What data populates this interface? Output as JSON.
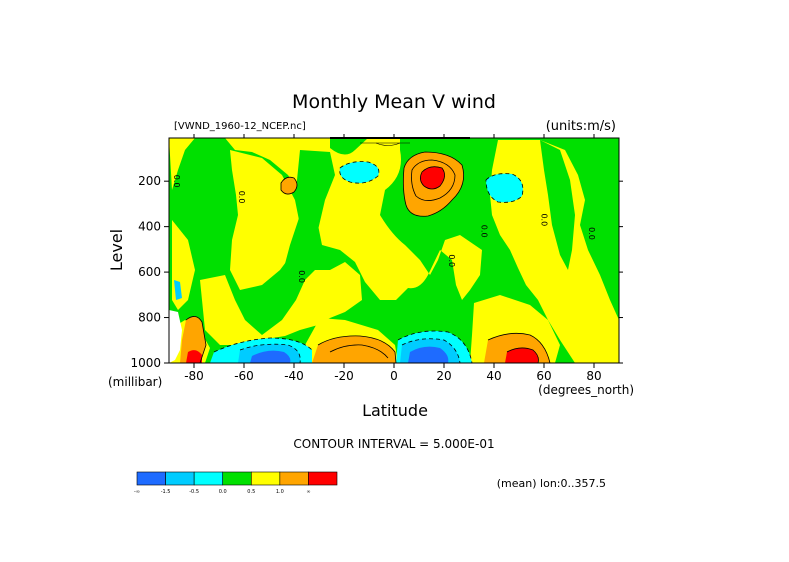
{
  "chart_data": {
    "type": "contour",
    "title": "Monthly Mean V wind",
    "dataset_label": "[VWND_1960-12_NCEP.nc]",
    "units_label": "(units:m/s)",
    "xlabel": "Latitude",
    "x_units": "(degrees_north)",
    "ylabel": "Level",
    "y_units": "(millibar)",
    "xlim": [
      -90,
      90
    ],
    "ylim": [
      1000,
      10
    ],
    "x_ticks": [
      -80,
      -60,
      -40,
      -20,
      0,
      20,
      40,
      60,
      80
    ],
    "x_tick_labels": [
      "-80",
      "-60",
      "-40",
      "-20",
      "0",
      "20",
      "40",
      "60",
      "80"
    ],
    "y_ticks": [
      200,
      400,
      600,
      800,
      1000
    ],
    "y_tick_labels": [
      "200",
      "400",
      "600",
      "800",
      "1000"
    ],
    "contour_interval_text": "CONTOUR INTERVAL = 5.000E-01",
    "mean_text": "(mean) lon:0..357.5",
    "colorbar": {
      "colors": [
        "#1e6bff",
        "#00ccff",
        "#00ffff",
        "#00e000",
        "#ffff00",
        "#ffa500",
        "#ff0000"
      ],
      "labels": [
        "-∞",
        "-1.5",
        "-0.5",
        "0.0",
        "0.5",
        "1.0",
        "∞"
      ]
    },
    "contour_labels": [
      {
        "x": -88,
        "y": 200,
        "text": "0.0"
      },
      {
        "x": -62,
        "y": 270,
        "text": "0.0"
      },
      {
        "x": -38,
        "y": 620,
        "text": "0.0"
      },
      {
        "x": 22,
        "y": 550,
        "text": "0.0"
      },
      {
        "x": 35,
        "y": 420,
        "text": "0.0"
      },
      {
        "x": 59,
        "y": 370,
        "text": "0.0"
      },
      {
        "x": 78,
        "y": 430,
        "text": "0.0"
      }
    ],
    "features": [
      {
        "region": "lat -90 to -80, near surface",
        "level": "1.5"
      },
      {
        "region": "lat -65 to -35, 850-1000 mb",
        "level": "-1.5"
      },
      {
        "region": "lat -25 to -5, 900-1000 mb",
        "level": "1.5"
      },
      {
        "region": "lat 5 to 25, 880-1000 mb",
        "level": "-1.5"
      },
      {
        "region": "lat 10 to 20, 100-250 mb",
        "level": "1.5"
      },
      {
        "region": "lat 45 to 60, 850-1000 mb",
        "level": "1.5"
      },
      {
        "region": "lat 32 to 45, 170-270 mb",
        "level": "-0.5"
      },
      {
        "region": "lat -20 to -8, 120-200 mb",
        "level": "-0.5"
      }
    ]
  }
}
